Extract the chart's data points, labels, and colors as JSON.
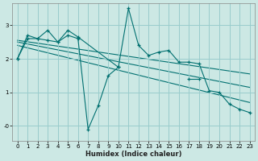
{
  "xlabel": "Humidex (Indice chaleur)",
  "bg_color": "#cce8e4",
  "line_color": "#007070",
  "grid_color": "#99cccc",
  "xlim": [
    -0.5,
    23.5
  ],
  "ylim": [
    -0.45,
    3.65
  ],
  "yticks": [
    0,
    1,
    2,
    3
  ],
  "ytick_labels": [
    "-0",
    "1",
    "2",
    "3"
  ],
  "xticks": [
    0,
    1,
    2,
    3,
    4,
    5,
    6,
    7,
    8,
    9,
    10,
    11,
    12,
    13,
    14,
    15,
    16,
    17,
    18,
    19,
    20,
    21,
    22,
    23
  ],
  "series_jagged": {
    "x": [
      0,
      1,
      2,
      3,
      4,
      5,
      6,
      10,
      11,
      12,
      13,
      14,
      15,
      16,
      17,
      18,
      19,
      20,
      21,
      22,
      23
    ],
    "y": [
      2.0,
      2.7,
      2.6,
      2.85,
      2.5,
      2.85,
      2.65,
      1.75,
      3.5,
      2.4,
      2.1,
      2.2,
      2.25,
      1.9,
      1.9,
      1.85,
      1.05,
      1.0,
      0.65,
      0.5,
      0.4
    ]
  },
  "series_dip": {
    "segments": [
      {
        "x": [
          0,
          1,
          2,
          3,
          4,
          5,
          6,
          7,
          8,
          9,
          10
        ],
        "y": [
          2.0,
          2.6,
          2.6,
          2.55,
          2.5,
          2.7,
          2.6,
          -0.1,
          0.6,
          1.5,
          1.75
        ]
      },
      {
        "x": [
          17,
          18
        ],
        "y": [
          1.4,
          1.4
        ]
      }
    ]
  },
  "trend_lines": [
    {
      "x": [
        0,
        23
      ],
      "y": [
        2.55,
        1.55
      ]
    },
    {
      "x": [
        0,
        23
      ],
      "y": [
        2.5,
        1.15
      ]
    },
    {
      "x": [
        0,
        23
      ],
      "y": [
        2.4,
        0.7
      ]
    }
  ]
}
